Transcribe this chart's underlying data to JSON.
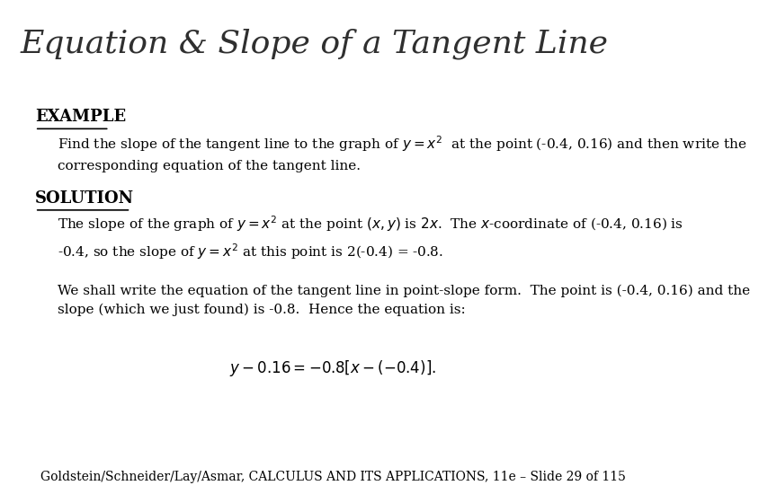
{
  "title": "Equation & Slope of a Tangent Line",
  "title_color": "#2F2F2F",
  "title_bg": "#FFFFF0",
  "title_fontsize": 26,
  "bar_color": "#8B0000",
  "body_bg": "#FFFFFF",
  "example_label": "EXAMPLE",
  "example_color": "#000000",
  "example_fontsize": 13,
  "solution_label": "SOLUTION",
  "solution_color": "#000000",
  "solution_fontsize": 13,
  "body_fontsize": 11,
  "example_text": "Find the slope of the tangent line to the graph of $y = x^2$  at the point (-0.4, 0.16) and then write the\ncorresponding equation of the tangent line.",
  "solution_text1": "The slope of the graph of $y = x^2$ at the point $(x, y)$ is $2x$.  The $x$-coordinate of (-0.4, 0.16) is\n-0.4, so the slope of $y = x^2$ at this point is 2(-0.4) = -0.8.",
  "solution_text2": "We shall write the equation of the tangent line in point-slope form.  The point is (-0.4, 0.16) and the\nslope (which we just found) is -0.8.  Hence the equation is:",
  "equation": "$y - 0.16 = -0.8[x - (-0.4)].$",
  "footer_normal": "Goldstein/Schneider/Lay/Asmar, ",
  "footer_italic": "CALCULUS AND ITS APPLICATIONS",
  "footer_end": ", 11e – Slide 29 of 115",
  "footer_fontsize": 10,
  "footer_bg": "#FFFFF0",
  "footer_color": "#000000"
}
